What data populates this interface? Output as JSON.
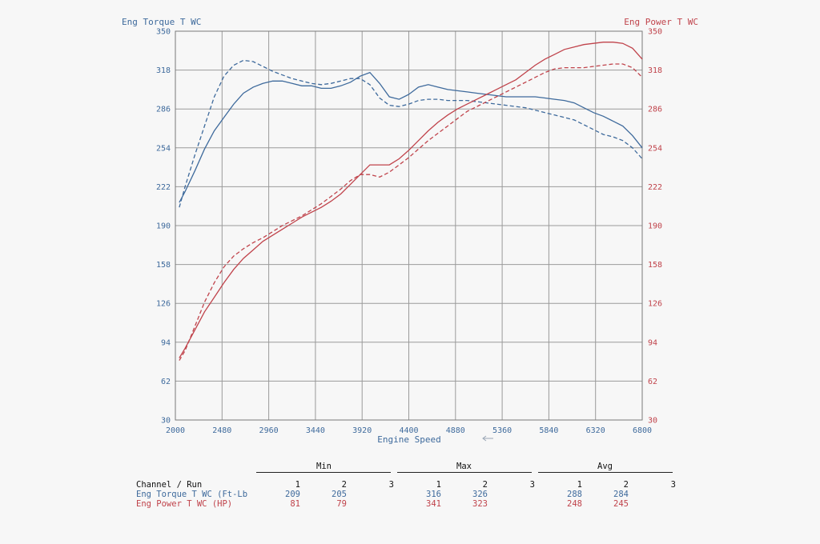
{
  "chart_data": {
    "type": "line",
    "xlabel": "Engine Speed",
    "xlim": [
      2000,
      6800
    ],
    "xticks": [
      2000,
      2480,
      2960,
      3440,
      3920,
      4400,
      4880,
      5360,
      5840,
      6320,
      6800
    ],
    "y_left": {
      "label": "Eng Torque T WC",
      "ylim": [
        30,
        350
      ],
      "ticks": [
        30,
        62,
        94,
        126,
        158,
        190,
        222,
        254,
        286,
        318,
        350
      ],
      "color": "#3e6a9c"
    },
    "y_right": {
      "label": "Eng Power T WC",
      "ylim": [
        30,
        350
      ],
      "ticks": [
        30,
        62,
        94,
        126,
        158,
        190,
        222,
        254,
        286,
        318,
        350
      ],
      "color": "#c0434b"
    },
    "grid": true,
    "series": [
      {
        "name": "Eng Torque T WC (Ft-Lb)",
        "run": 1,
        "axis": "left",
        "color": "#3e6a9c",
        "dash": false,
        "x": [
          2040,
          2100,
          2200,
          2300,
          2400,
          2500,
          2600,
          2700,
          2800,
          2900,
          3000,
          3100,
          3200,
          3300,
          3400,
          3500,
          3600,
          3700,
          3800,
          3900,
          4000,
          4100,
          4200,
          4300,
          4400,
          4500,
          4600,
          4700,
          4800,
          4900,
          5000,
          5100,
          5200,
          5300,
          5400,
          5500,
          5600,
          5700,
          5800,
          5900,
          6000,
          6100,
          6200,
          6300,
          6400,
          6500,
          6600,
          6700,
          6800
        ],
        "y": [
          209,
          218,
          235,
          253,
          268,
          279,
          290,
          299,
          304,
          307,
          309,
          309,
          307,
          305,
          305,
          303,
          303,
          305,
          308,
          313,
          316,
          307,
          296,
          294,
          298,
          304,
          306,
          304,
          302,
          301,
          300,
          299,
          298,
          297,
          296,
          296,
          296,
          296,
          295,
          294,
          293,
          291,
          287,
          283,
          280,
          276,
          272,
          264,
          254
        ]
      },
      {
        "name": "Eng Torque T WC (Ft-Lb)",
        "run": 2,
        "axis": "left",
        "color": "#3e6a9c",
        "dash": true,
        "x": [
          2040,
          2100,
          2200,
          2300,
          2400,
          2500,
          2600,
          2700,
          2800,
          2900,
          3000,
          3100,
          3200,
          3300,
          3400,
          3500,
          3600,
          3700,
          3800,
          3900,
          4000,
          4100,
          4200,
          4300,
          4400,
          4500,
          4600,
          4700,
          4800,
          4900,
          5000,
          5100,
          5200,
          5300,
          5400,
          5500,
          5600,
          5700,
          5800,
          5900,
          6000,
          6100,
          6200,
          6300,
          6400,
          6500,
          6600,
          6700,
          6800
        ],
        "y": [
          205,
          222,
          248,
          272,
          296,
          313,
          322,
          326,
          325,
          321,
          317,
          314,
          311,
          309,
          307,
          306,
          307,
          309,
          311,
          311,
          306,
          295,
          289,
          288,
          290,
          293,
          294,
          294,
          293,
          293,
          293,
          292,
          291,
          290,
          289,
          288,
          287,
          285,
          283,
          281,
          279,
          277,
          273,
          269,
          265,
          263,
          260,
          254,
          245
        ]
      },
      {
        "name": "Eng Power T WC (HP)",
        "run": 1,
        "axis": "right",
        "color": "#c0434b",
        "dash": false,
        "x": [
          2040,
          2100,
          2200,
          2300,
          2400,
          2500,
          2600,
          2700,
          2800,
          2900,
          3000,
          3100,
          3200,
          3300,
          3400,
          3500,
          3600,
          3700,
          3800,
          3900,
          4000,
          4100,
          4200,
          4300,
          4400,
          4500,
          4600,
          4700,
          4800,
          4900,
          5000,
          5100,
          5200,
          5300,
          5400,
          5500,
          5600,
          5700,
          5800,
          5900,
          6000,
          6100,
          6200,
          6300,
          6400,
          6500,
          6600,
          6700,
          6800
        ],
        "y": [
          81,
          89,
          104,
          119,
          131,
          143,
          154,
          163,
          170,
          177,
          182,
          187,
          192,
          197,
          201,
          205,
          210,
          216,
          224,
          232,
          240,
          240,
          240,
          245,
          252,
          260,
          268,
          275,
          281,
          286,
          290,
          294,
          298,
          302,
          306,
          310,
          316,
          322,
          327,
          331,
          335,
          337,
          339,
          340,
          341,
          341,
          340,
          336,
          327
        ]
      },
      {
        "name": "Eng Power T WC (HP)",
        "run": 2,
        "axis": "right",
        "color": "#c0434b",
        "dash": true,
        "x": [
          2040,
          2100,
          2200,
          2300,
          2400,
          2500,
          2600,
          2700,
          2800,
          2900,
          3000,
          3100,
          3200,
          3300,
          3400,
          3500,
          3600,
          3700,
          3800,
          3900,
          4000,
          4100,
          4200,
          4300,
          4400,
          4500,
          4600,
          4700,
          4800,
          4900,
          5000,
          5100,
          5200,
          5300,
          5400,
          5500,
          5600,
          5700,
          5800,
          5900,
          6000,
          6100,
          6200,
          6300,
          6400,
          6500,
          6600,
          6700,
          6800
        ],
        "y": [
          79,
          87,
          107,
          127,
          143,
          156,
          165,
          171,
          176,
          180,
          185,
          190,
          194,
          198,
          203,
          208,
          214,
          220,
          227,
          232,
          232,
          230,
          234,
          240,
          246,
          253,
          260,
          266,
          272,
          278,
          284,
          288,
          292,
          296,
          300,
          304,
          308,
          312,
          316,
          319,
          320,
          320,
          320,
          321,
          322,
          323,
          323,
          320,
          312
        ]
      }
    ]
  },
  "stats": {
    "groups": [
      "Min",
      "Max",
      "Avg"
    ],
    "header_label": "Channel / Run",
    "runs": [
      "1",
      "2",
      "3"
    ],
    "rows": [
      {
        "label": "Eng Torque T WC (Ft-Lb",
        "kind": "torque",
        "min": [
          "209",
          "205",
          ""
        ],
        "max": [
          "316",
          "326",
          ""
        ],
        "avg": [
          "288",
          "284",
          ""
        ]
      },
      {
        "label": "Eng Power T WC (HP)",
        "kind": "power",
        "min": [
          "81",
          "79",
          ""
        ],
        "max": [
          "341",
          "323",
          ""
        ],
        "avg": [
          "248",
          "245",
          ""
        ]
      }
    ]
  }
}
